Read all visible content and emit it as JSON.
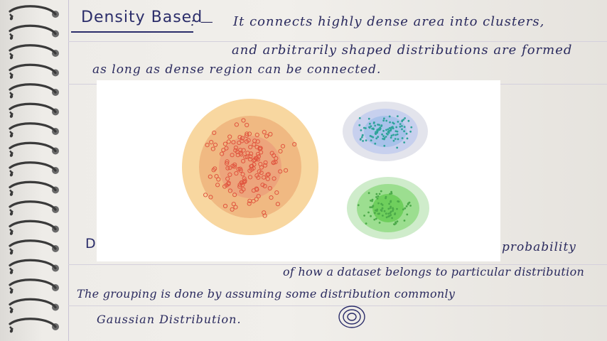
{
  "notes": {
    "density_heading": "Density Based",
    "density_dash": ": —",
    "line1": "It  connects  highly  dense  area  into  clusters,",
    "line2": "and  arbitrarily  shaped  distributions  are  formed",
    "line3": "as   long   as   dense   region   can   be   connected.",
    "dist_heading_fragment": "D",
    "line4": "probability",
    "line5": "of  how   a  dataset  belongs to  particular  distribution",
    "line6": "The  grouping   is   done  by   assuming   some  distribution  commonly",
    "line7": "Gaussian   Distribution."
  },
  "figure": {
    "clusters": [
      {
        "name": "large-orange-cluster",
        "ring_colors": [
          "#f8d7a0",
          "#f0b982",
          "#eda47c"
        ],
        "point_color": "#e0553f",
        "point_count": 150
      },
      {
        "name": "blue-cluster",
        "ring_colors": [
          "#e3e4ec",
          "#c7d0ee",
          "#a8c2ea"
        ],
        "point_color": "#2ea39a",
        "point_count": 110
      },
      {
        "name": "green-cluster",
        "ring_colors": [
          "#cfeccb",
          "#9cde90",
          "#6fcf5d"
        ],
        "point_color": "#4caa4a",
        "point_count": 80
      }
    ]
  }
}
